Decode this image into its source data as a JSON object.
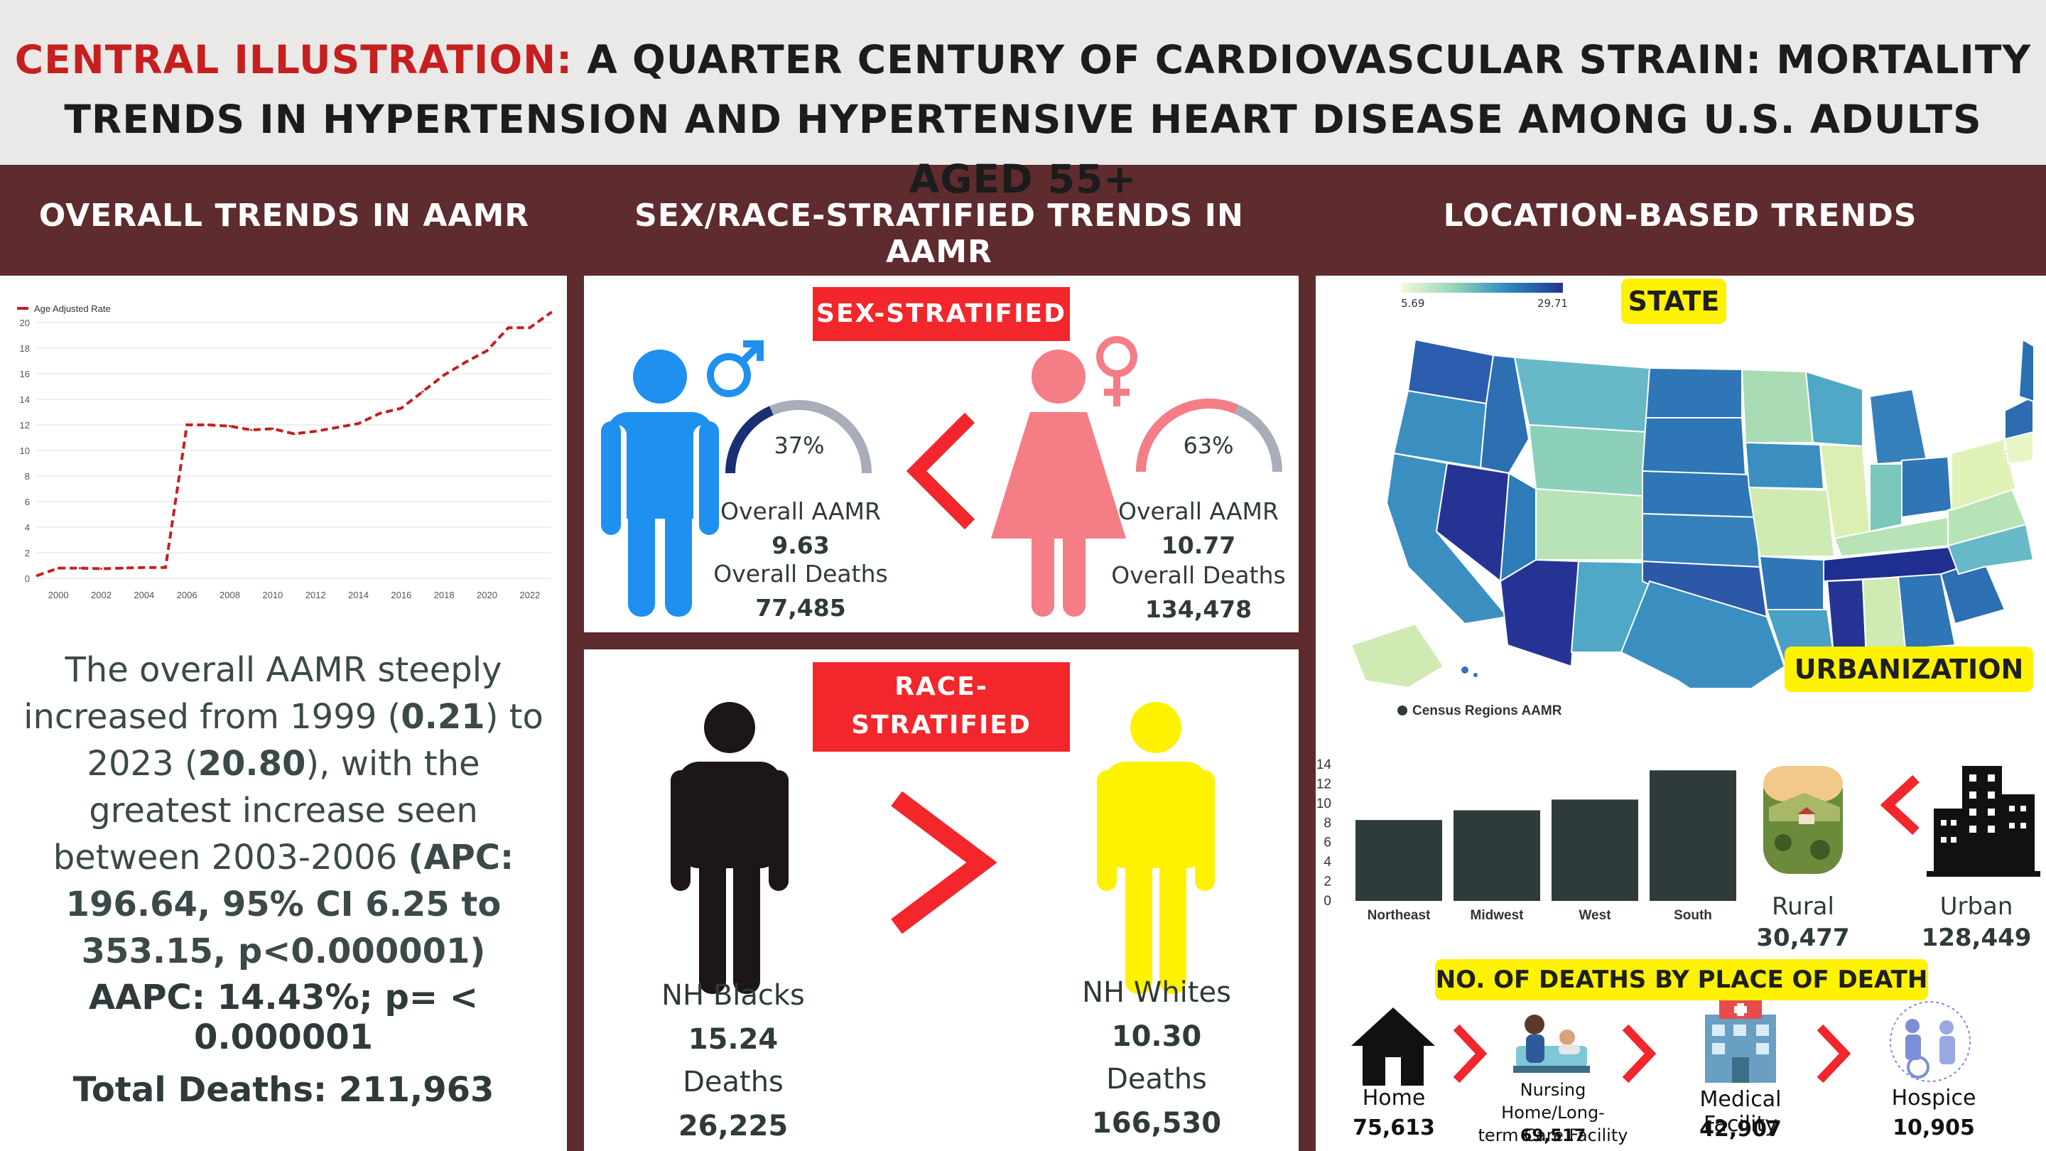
{
  "title": {
    "prefix": "CENTRAL ILLUSTRATION:",
    "line1_rest": "A QUARTER CENTURY OF CARDIOVASCULAR STRAIN: MORTALITY",
    "line2": "TRENDS IN HYPERTENSION AND HYPERTENSIVE HEART DISEASE AMONG U.S. ADULTS AGED 55+"
  },
  "sections": {
    "overall": "OVERALL TRENDS IN AAMR",
    "sexrace": "SEX/RACE-STRATIFIED TRENDS IN AAMR",
    "location": "LOCATION-BASED TRENDS"
  },
  "colors": {
    "maroon": "#5e2b2e",
    "red": "#f2262b",
    "yellow": "#fff200",
    "male": "#1e90ef",
    "female": "#f47d86",
    "dark": "#2e3b3a"
  },
  "chart_data": [
    {
      "type": "line",
      "legend": "Age Adjusted Rate",
      "x": [
        1999,
        2000,
        2001,
        2002,
        2003,
        2004,
        2005,
        2006,
        2007,
        2008,
        2009,
        2010,
        2011,
        2012,
        2013,
        2014,
        2015,
        2016,
        2017,
        2018,
        2019,
        2020,
        2021,
        2022,
        2023
      ],
      "y": [
        0.21,
        0.8,
        0.8,
        0.75,
        0.8,
        0.85,
        0.85,
        12.0,
        12.0,
        11.9,
        11.6,
        11.7,
        11.3,
        11.5,
        11.8,
        12.1,
        12.9,
        13.3,
        14.6,
        15.9,
        16.9,
        17.8,
        19.6,
        19.6,
        20.8
      ],
      "x_ticks": [
        "2000",
        "2002",
        "2004",
        "2006",
        "2008",
        "2010",
        "2012",
        "2014",
        "2016",
        "2018",
        "2020",
        "2022"
      ],
      "y_ticks": [
        "0",
        "2",
        "4",
        "6",
        "8",
        "10",
        "12",
        "14",
        "16",
        "18",
        "20"
      ],
      "ylim": [
        0,
        20
      ]
    },
    {
      "type": "bar",
      "legend": "Census Regions AAMR",
      "categories": [
        "Northeast",
        "Midwest",
        "West",
        "South"
      ],
      "values": [
        8.3,
        9.3,
        10.4,
        13.4
      ],
      "y_ticks": [
        "0",
        "2",
        "4",
        "6",
        "8",
        "10",
        "12",
        "14"
      ],
      "ylim": [
        0,
        14
      ]
    }
  ],
  "overall": {
    "summary_a": "The overall AAMR steeply increased from 1999 (",
    "v1999": "0.21",
    "summary_b": ") to 2023 (",
    "v2023": "20.80",
    "summary_c": "), with the greatest increase seen between 2003-2006 ",
    "apc": "(APC: 196.64, 95% CI 6.25 to 353.15, p<0.000001)",
    "aapc": "AAPC: 14.43%; p= < 0.000001",
    "total": "Total Deaths: 211,963"
  },
  "sex": {
    "tag": "SEX-STRATIFIED",
    "male": {
      "pct": "37%",
      "pct_value": 37,
      "aamr_label": "Overall AAMR",
      "aamr": "9.63",
      "deaths_label": "Overall Deaths",
      "deaths": "77,485"
    },
    "female": {
      "pct": "63%",
      "pct_value": 63,
      "aamr_label": "Overall AAMR",
      "aamr": "10.77",
      "deaths_label": "Overall Deaths",
      "deaths": "134,478"
    }
  },
  "race": {
    "tag_l1": "RACE-",
    "tag_l2": "STRATIFIED",
    "black": {
      "label": "NH Blacks",
      "aamr": "15.24",
      "deaths_label": "Deaths",
      "deaths": "26,225"
    },
    "white": {
      "label": "NH Whites",
      "aamr": "10.30",
      "deaths_label": "Deaths",
      "deaths": "166,530"
    }
  },
  "location": {
    "state_tag": "STATE",
    "scale_min": "5.69",
    "scale_max": "29.71",
    "urban_tag": "URBANIZATION",
    "rural": {
      "label": "Rural",
      "value": "30,477"
    },
    "urban": {
      "label": "Urban",
      "value": "128,449"
    },
    "deaths_tag": "NO. OF DEATHS BY PLACE OF DEATH",
    "places": [
      {
        "label": "Home",
        "value": "75,613"
      },
      {
        "label1": "Nursing Home/Long-",
        "label2": "term Care Facility",
        "value": "69,517"
      },
      {
        "label": "Medical Facility",
        "value": "42,907"
      },
      {
        "label": "Hospice",
        "value": "10,905"
      }
    ]
  }
}
